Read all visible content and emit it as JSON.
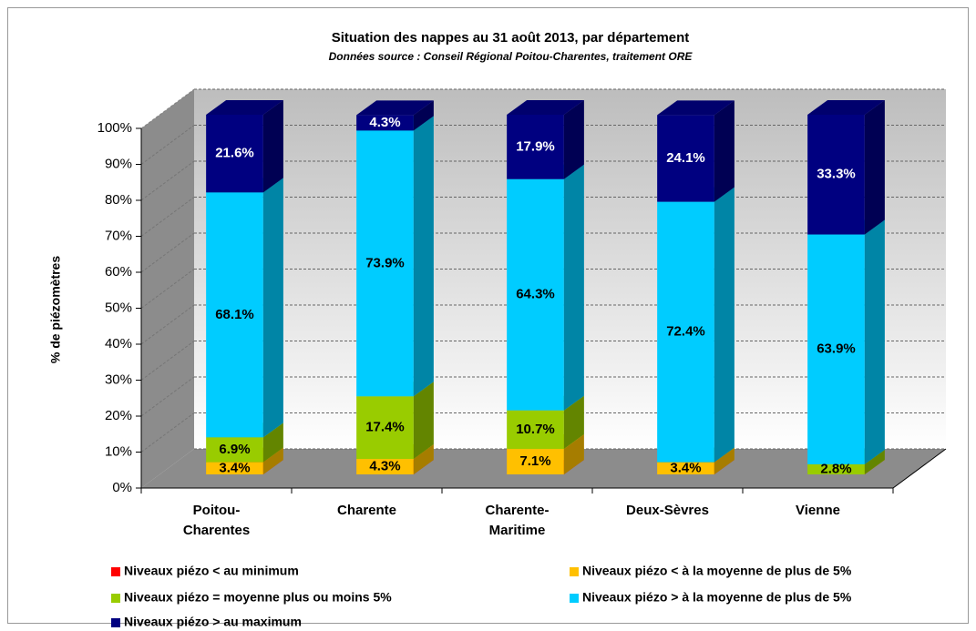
{
  "chart_data": {
    "type": "bar3d-stacked",
    "title": "Situation des nappes au 31 août 2013, par département",
    "subtitle": "Données source : Conseil Régional Poitou-Charentes,  traitement ORE",
    "y_label": "% de piézomètres",
    "categories": [
      "Poitou-\nCharentes",
      "Charente",
      "Charente-\nMaritime",
      "Deux-Sèvres",
      "Vienne"
    ],
    "series": [
      {
        "name": "Niveaux piézo < au minimum",
        "color": "#ff0000",
        "values": [
          0,
          0,
          0,
          0,
          0
        ]
      },
      {
        "name": "Niveaux piézo < à la moyenne de plus de 5%",
        "color": "#ffc000",
        "values": [
          3.4,
          4.3,
          7.1,
          3.4,
          0
        ],
        "value_labels": [
          "3.4%",
          "4.3%",
          "7.1%",
          "3.4%",
          null
        ]
      },
      {
        "name": "Niveaux piézo = moyenne plus ou moins 5%",
        "color": "#99cc00",
        "values": [
          6.9,
          17.4,
          10.7,
          0,
          2.8
        ],
        "value_labels": [
          "6.9%",
          "17.4%",
          "10.7%",
          null,
          "2.8%"
        ]
      },
      {
        "name": "Niveaux piézo > à la moyenne de plus de 5%",
        "color": "#00ccff",
        "values": [
          68.1,
          73.9,
          64.3,
          72.4,
          63.9
        ],
        "value_labels": [
          "68.1%",
          "73.9%",
          "64.3%",
          "72.4%",
          "63.9%"
        ]
      },
      {
        "name": "Niveaux piézo > au maximum",
        "color": "#000080",
        "values": [
          21.6,
          4.3,
          17.9,
          24.1,
          33.3
        ],
        "value_labels": [
          "21.6%",
          "4.3%",
          "17.9%",
          "24.1%",
          "33.3%"
        ]
      }
    ],
    "ylim": [
      0,
      100
    ],
    "yticks": [
      {
        "value": 0,
        "label": "0%"
      },
      {
        "value": 10,
        "label": "10%"
      },
      {
        "value": 20,
        "label": "20%"
      },
      {
        "value": 30,
        "label": "30%"
      },
      {
        "value": 40,
        "label": "40%"
      },
      {
        "value": 50,
        "label": "50%"
      },
      {
        "value": 60,
        "label": "60%"
      },
      {
        "value": 70,
        "label": "70%"
      },
      {
        "value": 80,
        "label": "80%"
      },
      {
        "value": 90,
        "label": "90%"
      },
      {
        "value": 100,
        "label": "100%"
      }
    ],
    "grid": true
  }
}
